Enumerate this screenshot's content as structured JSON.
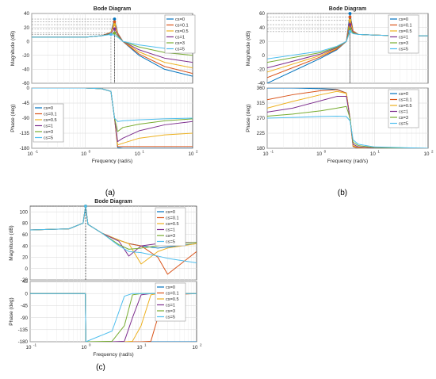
{
  "colors": {
    "cs=0": "#0072BD",
    "cs=0.1": "#D95319",
    "cs=0.5": "#EDB120",
    "cs=1": "#7E2F8E",
    "cs=3": "#77AC30",
    "cs=5": "#4DBEEE"
  },
  "chart_data": [
    {
      "type": "line",
      "panel_label": "(a)",
      "title": "Bode Diagram",
      "xlabel": "Frequency  (rad/s)",
      "x_scale": "log",
      "xlim": [
        0.1,
        100
      ],
      "x_ticks": [
        0.1,
        1,
        10,
        100
      ],
      "x_tick_labels": [
        "10",
        "10",
        "10",
        "10"
      ],
      "x_tick_exponents": [
        "-1",
        "0",
        "1",
        "2"
      ],
      "magnitude": {
        "ylabel": "Magnitude (dB)",
        "ylim": [
          -60,
          40
        ],
        "y_ticks": [
          -60,
          -40,
          -20,
          0,
          20,
          40
        ],
        "x": [
          0.1,
          1,
          2,
          3,
          3.5,
          4,
          5,
          10,
          30,
          100
        ],
        "series": [
          {
            "name": "cs=0",
            "values": [
              6,
              6,
              8,
              13,
              32,
              12,
              0,
              -20,
              -40,
              -50
            ]
          },
          {
            "name": "cs=0.1",
            "values": [
              6,
              6,
              8,
              13,
              28,
              12,
              0,
              -18,
              -36,
              -46
            ]
          },
          {
            "name": "cs=0.5",
            "values": [
              6,
              6,
              8,
              13,
              24,
              11,
              0,
              -15,
              -30,
              -38
            ]
          },
          {
            "name": "cs=1",
            "values": [
              6,
              6,
              8,
              12,
              18,
              10,
              0,
              -12,
              -24,
              -30
            ]
          },
          {
            "name": "cs=3",
            "values": [
              6,
              6,
              8,
              11,
              12,
              8,
              0,
              -8,
              -16,
              -20
            ]
          },
          {
            "name": "cs=5",
            "values": [
              6,
              6,
              8,
              10,
              9,
              6,
              0,
              -5,
              -10,
              -12
            ]
          }
        ]
      },
      "phase": {
        "ylabel": "Phase (deg)",
        "ylim": [
          -180,
          0
        ],
        "y_ticks": [
          -180,
          -135,
          -90,
          -45,
          0
        ],
        "x": [
          0.1,
          1,
          2,
          3,
          3.5,
          4,
          5,
          10,
          30,
          100
        ],
        "series": [
          {
            "name": "cs=0",
            "values": [
              0,
              0,
              -2,
              -10,
              -90,
              -178,
              -180,
              -180,
              -180,
              -180
            ]
          },
          {
            "name": "cs=0.1",
            "values": [
              0,
              0,
              -2,
              -10,
              -90,
              -175,
              -175,
              -175,
              -175,
              -175
            ]
          },
          {
            "name": "cs=0.5",
            "values": [
              0,
              0,
              -2,
              -10,
              -90,
              -170,
              -165,
              -150,
              -140,
              -135
            ]
          },
          {
            "name": "cs=1",
            "values": [
              0,
              0,
              -2,
              -10,
              -90,
              -160,
              -150,
              -128,
              -110,
              -100
            ]
          },
          {
            "name": "cs=3",
            "values": [
              0,
              0,
              -2,
              -10,
              -90,
              -130,
              -118,
              -108,
              -98,
              -92
            ]
          },
          {
            "name": "cs=5",
            "values": [
              0,
              0,
              -2,
              -10,
              -90,
              -100,
              -98,
              -95,
              -92,
              -90
            ]
          }
        ]
      }
    },
    {
      "type": "line",
      "panel_label": "(b)",
      "title": "Bode Diagram",
      "xlabel": "Frequency  (rad/s)",
      "x_scale": "log",
      "xlim": [
        0.1,
        100
      ],
      "x_ticks": [
        0.1,
        1,
        10,
        100
      ],
      "x_tick_labels": [
        "10",
        "10",
        "10",
        "10"
      ],
      "x_tick_exponents": [
        "-1",
        "0",
        "1",
        "2"
      ],
      "magnitude": {
        "ylabel": "Magnitude (dB)",
        "ylim": [
          -40,
          60
        ],
        "y_ticks": [
          -40,
          -20,
          0,
          20,
          40,
          60
        ],
        "x": [
          0.1,
          1,
          2,
          3,
          3.5,
          4,
          5,
          10,
          30,
          100
        ],
        "series": [
          {
            "name": "cs=0",
            "values": [
              -40,
              -4,
              8,
              20,
              60,
              35,
              30,
              29,
              28,
              28
            ]
          },
          {
            "name": "cs=0.1",
            "values": [
              -32,
              -2,
              9,
              20,
              55,
              35,
              30,
              29,
              28,
              28
            ]
          },
          {
            "name": "cs=0.5",
            "values": [
              -24,
              0,
              10,
              20,
              50,
              34,
              30,
              29,
              28,
              28
            ]
          },
          {
            "name": "cs=1",
            "values": [
              -18,
              2,
              11,
              20,
              44,
              33,
              30,
              29,
              28,
              28
            ]
          },
          {
            "name": "cs=3",
            "values": [
              -10,
              4,
              12,
              20,
              38,
              32,
              30,
              29,
              28,
              28
            ]
          },
          {
            "name": "cs=5",
            "values": [
              -5,
              6,
              13,
              20,
              34,
              31,
              30,
              29,
              28,
              28
            ]
          }
        ]
      },
      "phase": {
        "ylabel": "Phase (deg)",
        "ylim": [
          180,
          360
        ],
        "y_ticks": [
          180,
          225,
          270,
          315,
          360
        ],
        "x": [
          0.1,
          0.3,
          1,
          2,
          3,
          3.5,
          4,
          5,
          10,
          100
        ],
        "series": [
          {
            "name": "cs=0",
            "values": [
              360,
              360,
              358,
              356,
              345,
              270,
              185,
              180,
              180,
              180
            ]
          },
          {
            "name": "cs=0.1",
            "values": [
              325,
              340,
              352,
              355,
              345,
              270,
              185,
              181,
              180,
              180
            ]
          },
          {
            "name": "cs=0.5",
            "values": [
              300,
              320,
              340,
              350,
              344,
              270,
              188,
              182,
              180,
              180
            ]
          },
          {
            "name": "cs=1",
            "values": [
              288,
              300,
              322,
              335,
              335,
              270,
              192,
              184,
              181,
              180
            ]
          },
          {
            "name": "cs=3",
            "values": [
              276,
              282,
              292,
              300,
              305,
              270,
              198,
              188,
              182,
              180
            ]
          },
          {
            "name": "cs=5",
            "values": [
              270,
              272,
              275,
              276,
              275,
              262,
              205,
              192,
              184,
              180
            ]
          }
        ]
      }
    },
    {
      "type": "line",
      "panel_label": "(c)",
      "title": "Bode Diagram",
      "xlabel": "Frequency  (rad/s)",
      "x_scale": "log",
      "xlim": [
        0.1,
        100
      ],
      "x_ticks": [
        0.1,
        1,
        10,
        100
      ],
      "x_tick_labels": [
        "10",
        "10",
        "10",
        "10"
      ],
      "x_tick_exponents": [
        "-1",
        "0",
        "1",
        "2"
      ],
      "magnitude": {
        "ylabel": "Magnitude (dB)",
        "ylim": [
          -20,
          110
        ],
        "y_ticks": [
          -20,
          0,
          20,
          40,
          60,
          80,
          100
        ],
        "x": [
          0.1,
          0.5,
          0.9,
          1,
          1.1,
          2,
          4,
          6,
          10,
          20,
          30,
          100
        ],
        "series": [
          {
            "name": "cs=0",
            "values": [
              68,
              70,
              80,
              110,
              78,
              62,
              50,
              44,
              40,
              36,
              38,
              44
            ]
          },
          {
            "name": "cs=0.1",
            "values": [
              68,
              70,
              80,
              110,
              78,
              62,
              50,
              44,
              40,
              20,
              -10,
              30
            ]
          },
          {
            "name": "cs=0.5",
            "values": [
              68,
              70,
              80,
              110,
              78,
              62,
              50,
              44,
              8,
              30,
              36,
              44
            ]
          },
          {
            "name": "cs=1",
            "values": [
              68,
              70,
              80,
              110,
              78,
              62,
              48,
              22,
              40,
              44,
              45,
              46
            ]
          },
          {
            "name": "cs=3",
            "values": [
              68,
              70,
              80,
              110,
              78,
              62,
              42,
              34,
              36,
              40,
              43,
              46
            ]
          },
          {
            "name": "cs=5",
            "values": [
              68,
              70,
              80,
              110,
              78,
              62,
              40,
              30,
              28,
              22,
              18,
              10
            ]
          }
        ]
      },
      "phase": {
        "ylabel": "Phase (deg)",
        "ylim": [
          -180,
          45
        ],
        "y_ticks": [
          -180,
          -135,
          -90,
          -45,
          0,
          45
        ],
        "x": [
          0.1,
          0.99,
          1.01,
          3,
          5,
          7,
          10,
          15,
          20,
          30,
          100
        ],
        "series": [
          {
            "name": "cs=0",
            "values": [
              0,
              0,
              -180,
              -180,
              -180,
              -180,
              -180,
              -180,
              -180,
              -180,
              -180
            ]
          },
          {
            "name": "cs=0.1",
            "values": [
              0,
              0,
              -180,
              -180,
              -180,
              -180,
              -180,
              -178,
              -90,
              -5,
              0
            ]
          },
          {
            "name": "cs=0.5",
            "values": [
              0,
              0,
              -180,
              -180,
              -180,
              -178,
              -120,
              -5,
              0,
              0,
              0
            ]
          },
          {
            "name": "cs=1",
            "values": [
              0,
              0,
              -180,
              -180,
              -178,
              -90,
              -5,
              0,
              0,
              0,
              0
            ]
          },
          {
            "name": "cs=3",
            "values": [
              0,
              0,
              -180,
              -178,
              -120,
              -5,
              0,
              0,
              0,
              0,
              0
            ]
          },
          {
            "name": "cs=5",
            "values": [
              0,
              0,
              -180,
              -140,
              -10,
              0,
              0,
              0,
              0,
              0,
              0
            ]
          }
        ]
      }
    }
  ]
}
